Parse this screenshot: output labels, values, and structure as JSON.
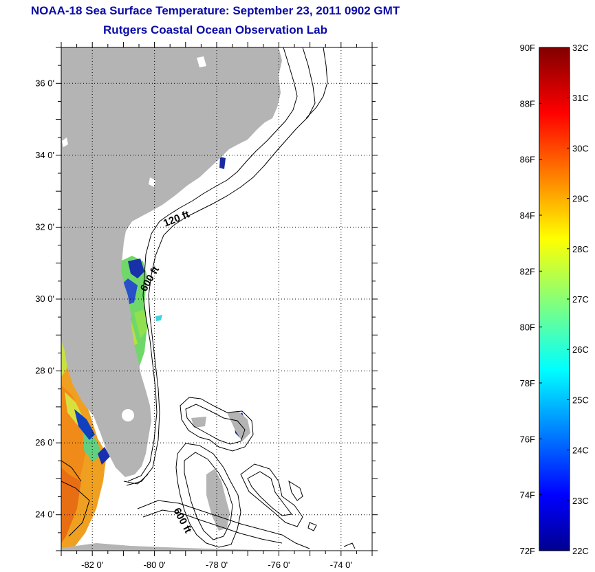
{
  "title": "NOAA-18 Sea Surface Temperature:  September 23, 2011 0902 GMT",
  "subtitle": "Rutgers Coastal Ocean Observation Lab",
  "map": {
    "lon_range": [
      -83,
      -73
    ],
    "lat_range": [
      23,
      37
    ],
    "lat_labels": [
      {
        "value": 36,
        "text": "36 0'"
      },
      {
        "value": 34,
        "text": "34 0'"
      },
      {
        "value": 32,
        "text": "32 0'"
      },
      {
        "value": 30,
        "text": "30 0'"
      },
      {
        "value": 28,
        "text": "28 0'"
      },
      {
        "value": 26,
        "text": "26 0'"
      },
      {
        "value": 24,
        "text": "24 0'"
      }
    ],
    "lon_labels": [
      {
        "value": -82,
        "text": "-82 0'"
      },
      {
        "value": -80,
        "text": "-80 0'"
      },
      {
        "value": -78,
        "text": "-78 0'"
      },
      {
        "value": -76,
        "text": "-76 0'"
      },
      {
        "value": -74,
        "text": "-74 0'"
      }
    ],
    "contour_labels": [
      "120 ft",
      "600 ft",
      "600 ft"
    ],
    "land_color": "#b4b4b4",
    "grid": "dotted"
  },
  "colorbar": {
    "fahrenheit_labels": [
      "90F",
      "88F",
      "86F",
      "84F",
      "82F",
      "80F",
      "78F",
      "76F",
      "74F",
      "72F"
    ],
    "celsius_labels": [
      "32C",
      "31C",
      "30C",
      "29C",
      "28C",
      "27C",
      "26C",
      "25C",
      "24C",
      "23C",
      "22C"
    ],
    "range_c": [
      22,
      32
    ],
    "range_f": [
      72,
      90
    ],
    "colormap": "jet"
  }
}
